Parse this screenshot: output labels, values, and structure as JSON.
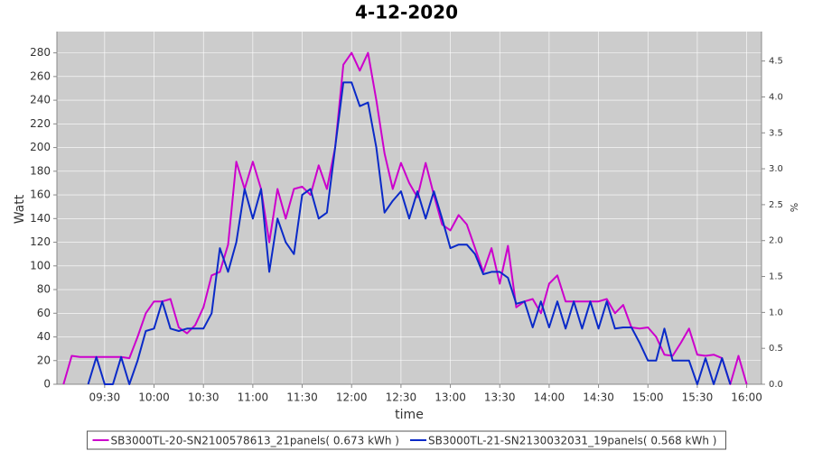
{
  "chart_data": {
    "type": "line",
    "title": "4-12-2020",
    "x_label": "time",
    "y_label": "Watt",
    "y2_label": "%",
    "x": [
      "09:05",
      "09:10",
      "09:15",
      "09:20",
      "09:25",
      "09:30",
      "09:35",
      "09:40",
      "09:45",
      "09:50",
      "09:55",
      "10:00",
      "10:05",
      "10:10",
      "10:15",
      "10:20",
      "10:25",
      "10:30",
      "10:35",
      "10:40",
      "10:45",
      "10:50",
      "10:55",
      "11:00",
      "11:05",
      "11:10",
      "11:15",
      "11:20",
      "11:25",
      "11:30",
      "11:35",
      "11:40",
      "11:45",
      "11:50",
      "11:55",
      "12:00",
      "12:05",
      "12:10",
      "12:15",
      "12:20",
      "12:25",
      "12:30",
      "12:35",
      "12:40",
      "12:45",
      "12:50",
      "12:55",
      "13:00",
      "13:05",
      "13:10",
      "13:15",
      "13:20",
      "13:25",
      "13:30",
      "13:35",
      "13:40",
      "13:45",
      "13:50",
      "13:55",
      "14:00",
      "14:05",
      "14:10",
      "14:15",
      "14:20",
      "14:25",
      "14:30",
      "14:35",
      "14:40",
      "14:45",
      "14:50",
      "14:55",
      "15:00",
      "15:05",
      "15:10",
      "15:15",
      "15:20",
      "15:25",
      "15:30",
      "15:35",
      "15:40",
      "15:45",
      "15:50",
      "15:55",
      "16:00"
    ],
    "series": [
      {
        "name": "SB3000TL-20-SN2100578613_21panels( 0.673 kWh )",
        "color": "#cc00cc",
        "values": [
          0,
          24,
          23,
          23,
          23,
          23,
          23,
          23,
          22,
          40,
          60,
          70,
          70,
          72,
          48,
          43,
          50,
          65,
          92,
          95,
          118,
          188,
          165,
          188,
          165,
          120,
          165,
          140,
          165,
          167,
          160,
          185,
          165,
          200,
          270,
          280,
          265,
          280,
          240,
          195,
          165,
          187,
          170,
          158,
          187,
          160,
          135,
          130,
          143,
          135,
          115,
          95,
          115,
          85,
          117,
          65,
          70,
          72,
          60,
          85,
          92,
          70,
          70,
          70,
          70,
          70,
          72,
          60,
          67,
          48,
          47,
          48,
          40,
          25,
          24,
          35,
          47,
          25,
          24,
          25,
          22,
          0,
          24,
          0
        ]
      },
      {
        "name": "SB3000TL-21-SN2130032031_19panels( 0.568 kWh )",
        "color": "#0a2ac8",
        "values": [
          null,
          null,
          null,
          0,
          23,
          0,
          0,
          23,
          0,
          20,
          45,
          47,
          70,
          47,
          45,
          47,
          47,
          47,
          60,
          115,
          95,
          120,
          165,
          140,
          165,
          95,
          140,
          120,
          110,
          160,
          165,
          140,
          145,
          200,
          255,
          255,
          235,
          238,
          200,
          145,
          155,
          163,
          140,
          163,
          140,
          163,
          140,
          115,
          118,
          118,
          110,
          93,
          95,
          95,
          90,
          68,
          70,
          48,
          70,
          48,
          70,
          47,
          70,
          47,
          70,
          47,
          70,
          47,
          48,
          48,
          35,
          20,
          20,
          47,
          20,
          20,
          20,
          0,
          22,
          0,
          22,
          0,
          null,
          null
        ]
      }
    ],
    "xlim": [
      "09:01",
      "16:09"
    ],
    "xticks": [
      "09:30",
      "10:00",
      "10:30",
      "11:00",
      "11:30",
      "12:00",
      "12:30",
      "13:00",
      "13:30",
      "14:00",
      "14:30",
      "15:00",
      "15:30",
      "16:00"
    ],
    "ylim": [
      0,
      298
    ],
    "yticks": [
      0,
      20,
      40,
      60,
      80,
      100,
      120,
      140,
      160,
      180,
      200,
      220,
      240,
      260,
      280
    ],
    "y2lim": [
      0,
      4.91
    ],
    "y2ticks": [
      {
        "value": 0,
        "label": "0.0"
      },
      0.5,
      {
        "value": 1,
        "label": "1.0"
      },
      1.5,
      {
        "value": 2,
        "label": "2.0"
      },
      2.5,
      {
        "value": 3,
        "label": "3.0"
      },
      3.5,
      {
        "value": 4,
        "label": "4.0"
      },
      4.5
    ],
    "grid": true,
    "legend": "bottom"
  }
}
